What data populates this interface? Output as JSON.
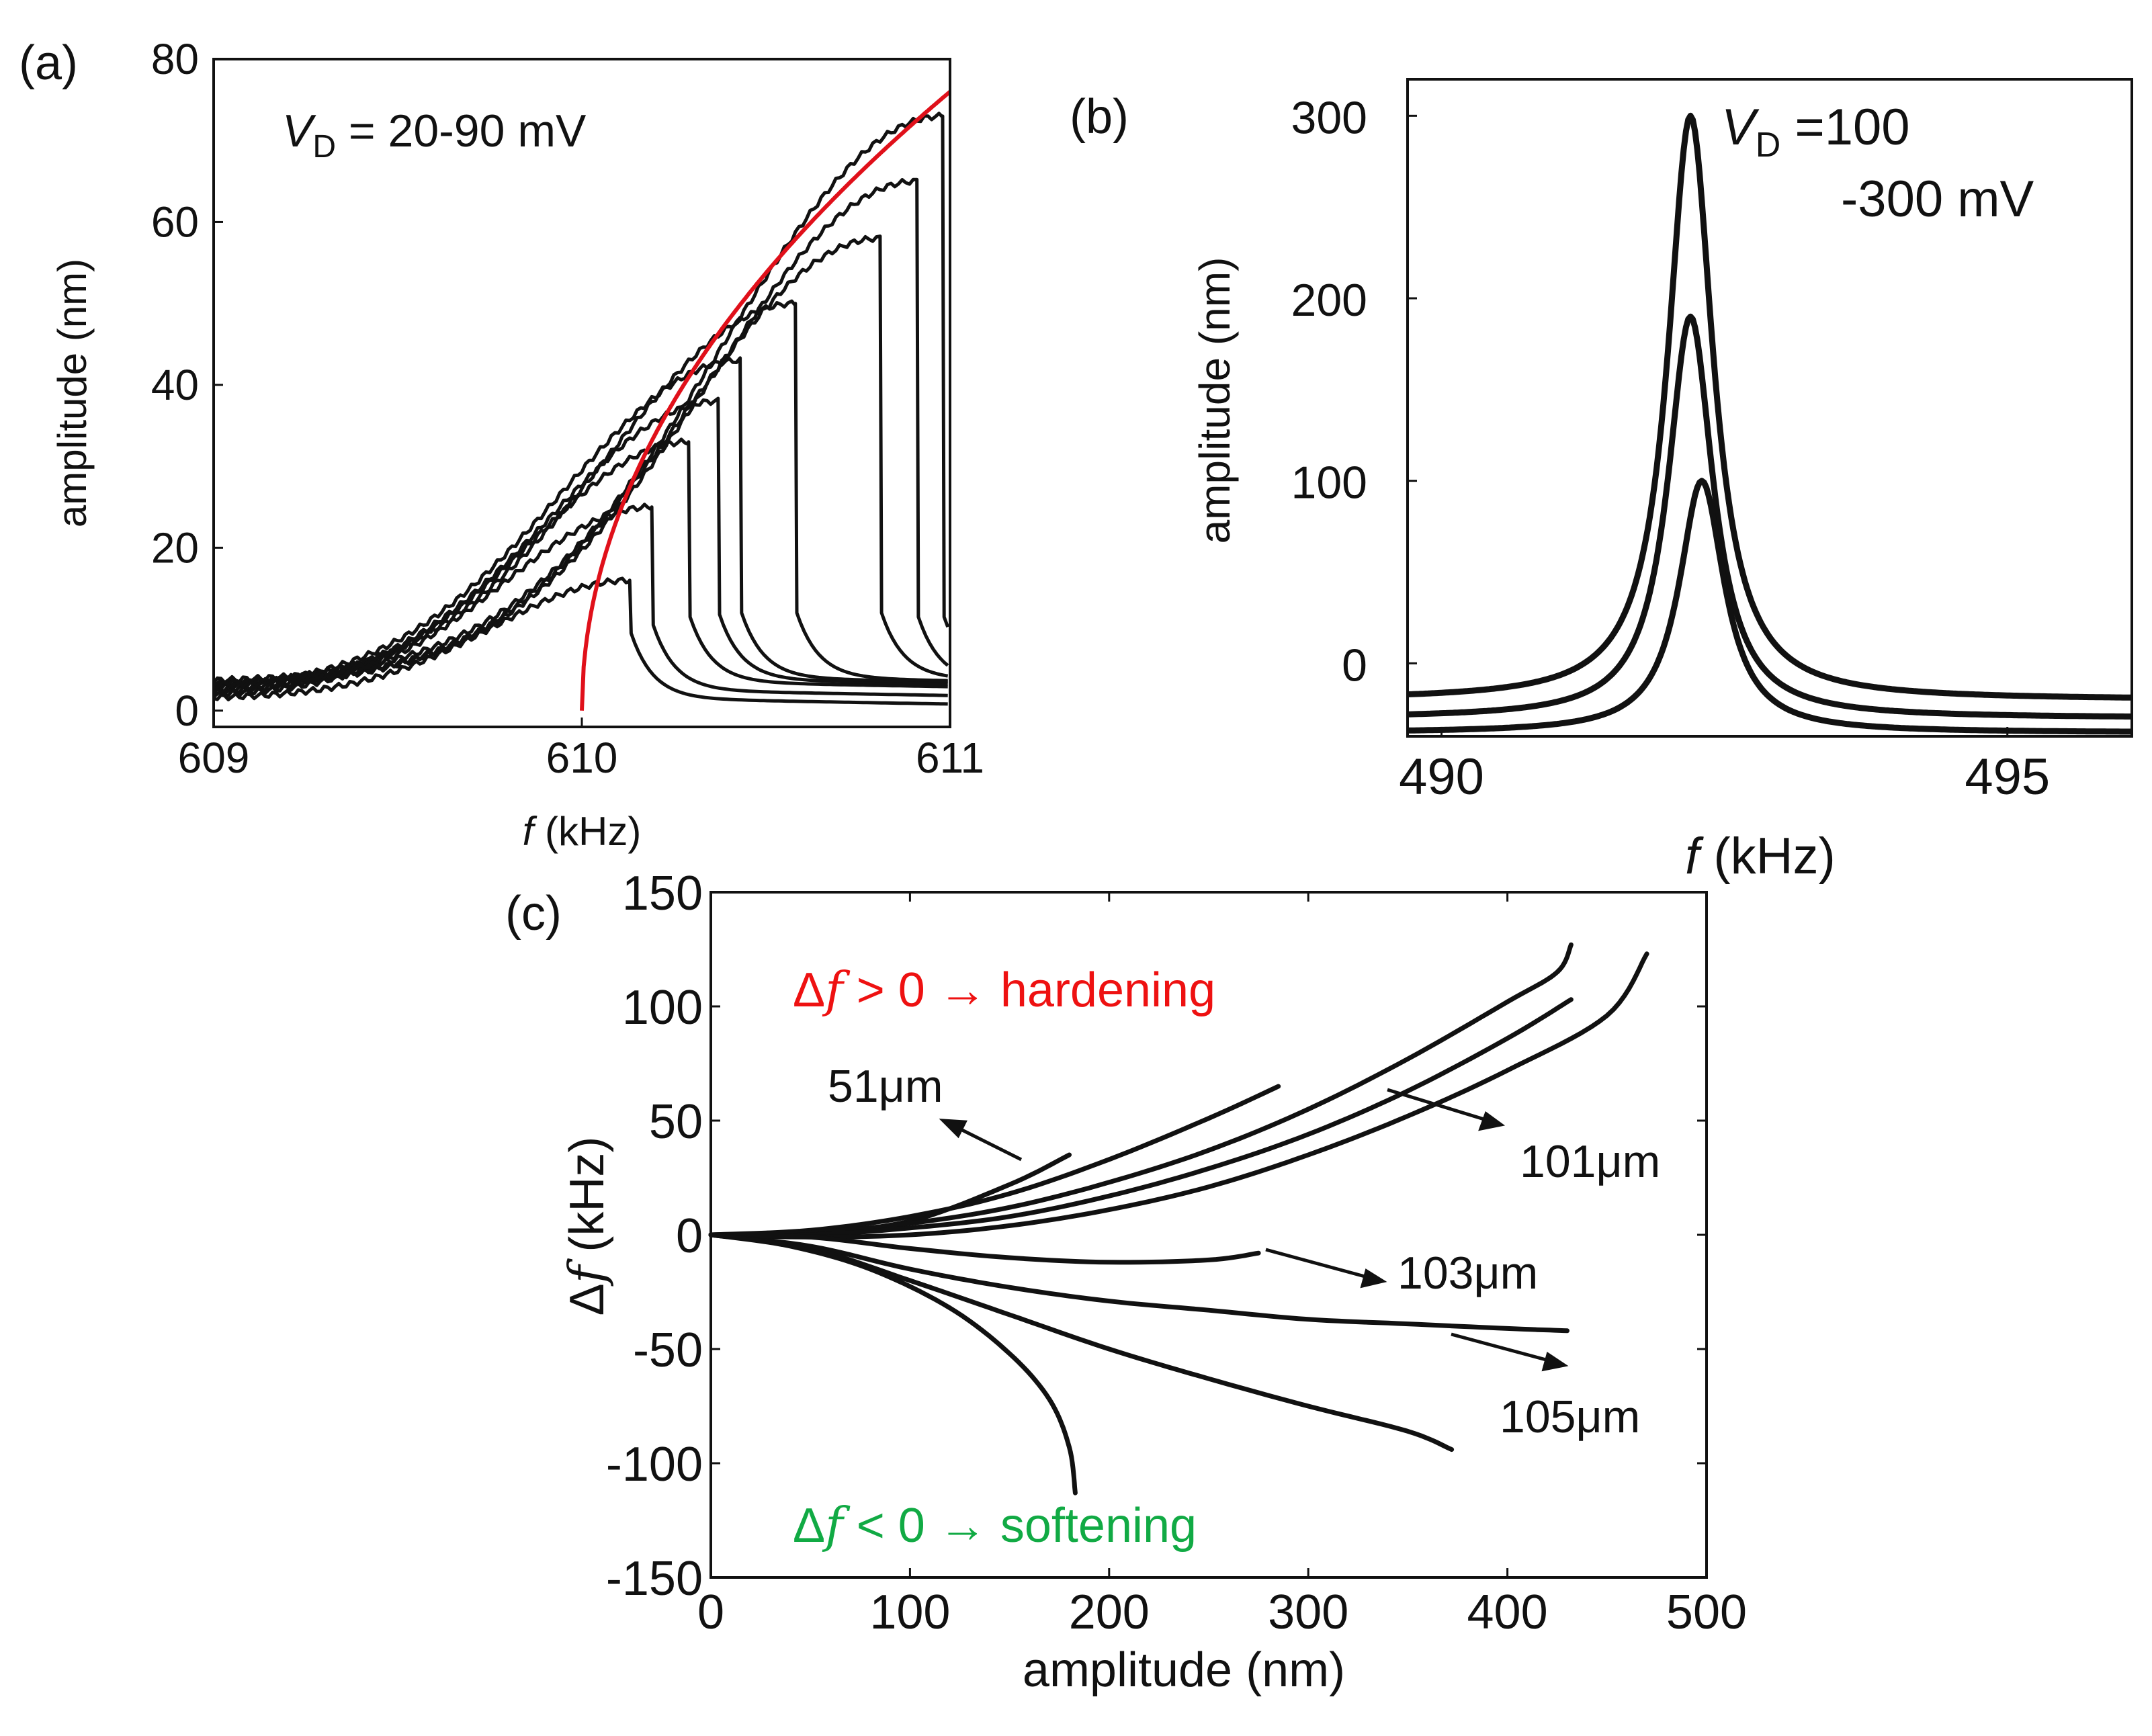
{
  "chart_data": [
    {
      "panel": "(a)",
      "type": "line",
      "xlabel_italic": "f",
      "xlabel": " (kHz)",
      "ylabel": "amplitude (nm)",
      "xlim": [
        609,
        611
      ],
      "ylim": [
        -2,
        80
      ],
      "xticks": [
        "609",
        "610",
        "611"
      ],
      "yticks": [
        "0",
        "20",
        "40",
        "60",
        "80"
      ],
      "annotation": {
        "var": "V",
        "sub": "D",
        "text": " = 20-90 mV"
      },
      "colors": {
        "curves": "#111111",
        "backbone": "#e0101a"
      },
      "backbone": {
        "f0": 610.0,
        "k": 1.12,
        "amax": 76
      },
      "series": [
        {
          "peak_f": 610.13,
          "peak_a": 16,
          "end_a": 1.5
        },
        {
          "peak_f": 610.19,
          "peak_a": 25,
          "end_a": 2.5
        },
        {
          "peak_f": 610.29,
          "peak_a": 33,
          "end_a": 3.5
        },
        {
          "peak_f": 610.37,
          "peak_a": 38,
          "end_a": 3.8
        },
        {
          "peak_f": 610.43,
          "peak_a": 43,
          "end_a": 4.0
        },
        {
          "peak_f": 610.58,
          "peak_a": 50,
          "end_a": 4.0
        },
        {
          "peak_f": 610.81,
          "peak_a": 58,
          "end_a": 4.0
        },
        {
          "peak_f": 610.91,
          "peak_a": 65,
          "end_a": 3.5
        },
        {
          "peak_f": 610.98,
          "peak_a": 73,
          "end_a": 3.5
        }
      ]
    },
    {
      "panel": "(b)",
      "type": "line",
      "xlabel_italic": "f",
      "xlabel": " (kHz)",
      "ylabel": "amplitude (nm)",
      "xlim": [
        489.7,
        496.1
      ],
      "ylim": [
        -40,
        320
      ],
      "xticks": [
        "490",
        "495"
      ],
      "yticks": [
        "0",
        "100",
        "200",
        "300"
      ],
      "annotation": {
        "var": "V",
        "sub": "D",
        "line1": " =100",
        "line2": "-300 mV"
      },
      "series": [
        {
          "peak_f": 492.2,
          "peak_a": 300,
          "offset": -20
        },
        {
          "peak_f": 492.2,
          "peak_a": 190,
          "offset": -30
        },
        {
          "peak_f": 492.3,
          "peak_a": 100,
          "offset": -38
        }
      ]
    },
    {
      "panel": "(c)",
      "type": "line",
      "xlabel": "amplitude (nm)",
      "ylabel_prefix": "Δ",
      "ylabel_italic": "f",
      "ylabel": " (kHz)",
      "xlim": [
        0,
        500
      ],
      "ylim": [
        -150,
        150
      ],
      "xticks": [
        "0",
        "100",
        "200",
        "300",
        "400",
        "500"
      ],
      "yticks": [
        "150",
        "100",
        "50",
        "0",
        "-50",
        "-100",
        "-150"
      ],
      "hardening_label": {
        "prefix": "Δ",
        "var": "f",
        "text": " > 0 → hardening",
        "color": "#ee1111"
      },
      "softening_label": {
        "prefix": "Δ",
        "var": "f",
        "text": " < 0 → softening",
        "color": "#11aa44"
      },
      "callouts": [
        "51μm",
        "101μm",
        "103μm",
        "105μm"
      ],
      "series": [
        {
          "points": [
            [
              0,
              0
            ],
            [
              50,
              1
            ],
            [
              100,
              6
            ],
            [
              150,
              22
            ],
            [
              180,
              35
            ]
          ]
        },
        {
          "points": [
            [
              0,
              0
            ],
            [
              50,
              2
            ],
            [
              100,
              8
            ],
            [
              150,
              18
            ],
            [
              200,
              33
            ],
            [
              250,
              51
            ],
            [
              285,
              65
            ]
          ]
        },
        {
          "points": [
            [
              0,
              0
            ],
            [
              50,
              1
            ],
            [
              100,
              5
            ],
            [
              150,
              12
            ],
            [
              200,
              23
            ],
            [
              250,
              37
            ],
            [
              300,
              55
            ],
            [
              350,
              77
            ],
            [
              400,
              102
            ],
            [
              425,
              115
            ],
            [
              432,
              127
            ]
          ]
        },
        {
          "points": [
            [
              0,
              0
            ],
            [
              50,
              0
            ],
            [
              100,
              3
            ],
            [
              150,
              8
            ],
            [
              200,
              17
            ],
            [
              250,
              29
            ],
            [
              300,
              44
            ],
            [
              350,
              63
            ],
            [
              400,
              86
            ],
            [
              432,
              103
            ]
          ]
        },
        {
          "points": [
            [
              0,
              0
            ],
            [
              50,
              -1
            ],
            [
              100,
              0
            ],
            [
              150,
              4
            ],
            [
              200,
              11
            ],
            [
              250,
              21
            ],
            [
              300,
              35
            ],
            [
              350,
              52
            ],
            [
              400,
              72
            ],
            [
              450,
              96
            ],
            [
              470,
              123
            ]
          ]
        },
        {
          "points": [
            [
              0,
              0
            ],
            [
              50,
              -1
            ],
            [
              100,
              -6
            ],
            [
              150,
              -10
            ],
            [
              200,
              -12
            ],
            [
              250,
              -11
            ],
            [
              275,
              -8
            ]
          ]
        },
        {
          "points": [
            [
              0,
              0
            ],
            [
              50,
              -5
            ],
            [
              100,
              -15
            ],
            [
              150,
              -23
            ],
            [
              200,
              -29
            ],
            [
              250,
              -33
            ],
            [
              300,
              -37
            ],
            [
              350,
              -39
            ],
            [
              400,
              -41
            ],
            [
              430,
              -42
            ]
          ]
        },
        {
          "points": [
            [
              0,
              0
            ],
            [
              50,
              -6
            ],
            [
              100,
              -20
            ],
            [
              150,
              -35
            ],
            [
              200,
              -50
            ],
            [
              250,
              -63
            ],
            [
              300,
              -75
            ],
            [
              350,
              -86
            ],
            [
              372,
              -94
            ]
          ]
        },
        {
          "points": [
            [
              0,
              0
            ],
            [
              40,
              -5
            ],
            [
              80,
              -15
            ],
            [
              120,
              -32
            ],
            [
              150,
              -52
            ],
            [
              170,
              -72
            ],
            [
              180,
              -93
            ],
            [
              183,
              -113
            ]
          ]
        }
      ]
    }
  ]
}
